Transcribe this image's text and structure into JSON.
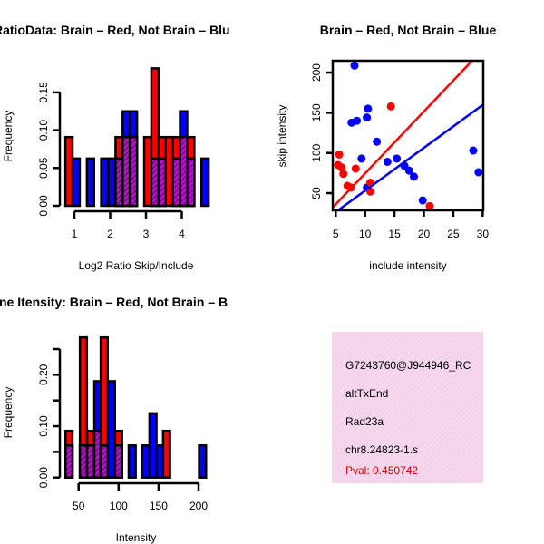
{
  "colors": {
    "red": "#ff0000",
    "blue": "#0000ff",
    "overlap": "#9900aa",
    "pval": "#cc0000",
    "box": "#f7d6f0"
  },
  "chart_data": [
    {
      "type": "bar",
      "title": "RatioData: Brain – Red, Not Brain – Blu",
      "xlabel": "Log2 Ratio Skip/Include",
      "ylabel": "Frequency",
      "xticks": [
        1,
        2,
        3,
        4
      ],
      "yticks": [
        "0.00",
        "0.05",
        "0.10",
        "0.15"
      ],
      "ylim": [
        0,
        0.15
      ],
      "bin_width": 0.2,
      "bins": [
        {
          "x": 0.85,
          "red": 0.0909,
          "blue": 0
        },
        {
          "x": 1.05,
          "red": 0,
          "blue": 0.0625
        },
        {
          "x": 1.45,
          "red": 0,
          "blue": 0.0625
        },
        {
          "x": 1.85,
          "red": 0,
          "blue": 0.0625
        },
        {
          "x": 2.05,
          "red": 0,
          "blue": 0.0625
        },
        {
          "x": 2.25,
          "red": 0.0909,
          "blue": 0.0625
        },
        {
          "x": 2.45,
          "red": 0.0909,
          "blue": 0.125
        },
        {
          "x": 2.65,
          "red": 0.0909,
          "blue": 0.125
        },
        {
          "x": 3.05,
          "red": 0.0909,
          "blue": 0
        },
        {
          "x": 3.25,
          "red": 0.1818,
          "blue": 0.0625
        },
        {
          "x": 3.45,
          "red": 0.0909,
          "blue": 0.0625
        },
        {
          "x": 3.65,
          "red": 0.0909,
          "blue": 0
        },
        {
          "x": 3.85,
          "red": 0.0909,
          "blue": 0.0625
        },
        {
          "x": 4.05,
          "red": 0.0909,
          "blue": 0.125
        },
        {
          "x": 4.25,
          "red": 0.0909,
          "blue": 0.0625
        },
        {
          "x": 4.65,
          "red": 0,
          "blue": 0.0625
        }
      ]
    },
    {
      "type": "scatter",
      "title": "Brain – Red, Not Brain – Blue",
      "xlabel": "include intensity",
      "ylabel": "skip intensity",
      "xticks": [
        5,
        10,
        15,
        20,
        25,
        30
      ],
      "yticks": [
        50,
        100,
        150,
        200
      ],
      "xlim": [
        4.5,
        30.1
      ],
      "ylim": [
        28.6,
        214.7
      ],
      "series": [
        {
          "name": "Not Brain",
          "color": "blue",
          "points": [
            [
              8.2,
              208.7
            ],
            [
              10.5,
              155
            ],
            [
              10.3,
              144
            ],
            [
              7.7,
              137.6
            ],
            [
              8.6,
              140
            ],
            [
              12.0,
              114
            ],
            [
              9.4,
              93
            ],
            [
              13.8,
              89
            ],
            [
              15.4,
              93
            ],
            [
              16.7,
              84
            ],
            [
              17.5,
              78
            ],
            [
              18.3,
              70.5
            ],
            [
              10.3,
              57
            ],
            [
              19.8,
              41
            ],
            [
              28.4,
              103
            ],
            [
              29.3,
              76
            ]
          ],
          "fit": {
            "intercept": -0.2,
            "slope": 5.33
          }
        },
        {
          "name": "Brain",
          "color": "red",
          "points": [
            [
              14.4,
              158
            ],
            [
              5.6,
              98
            ],
            [
              5.4,
              85
            ],
            [
              6.0,
              82
            ],
            [
              6.3,
              74
            ],
            [
              8.4,
              80.5
            ],
            [
              7.0,
              59
            ],
            [
              7.6,
              57
            ],
            [
              10.9,
              63
            ],
            [
              10.9,
              52
            ],
            [
              21.0,
              34
            ]
          ],
          "fit": {
            "intercept": -2.4,
            "slope": 7.7
          }
        }
      ]
    },
    {
      "type": "bar",
      "title": "ne Itensity: Brain – Red, Not Brain – B",
      "xlabel": "Intensity",
      "ylabel": "Frequency",
      "xticks": [
        50,
        100,
        150,
        200
      ],
      "yticks": [
        "0.00",
        "",
        "0.10",
        "",
        "0.20",
        ""
      ],
      "ylim": [
        0,
        0.25
      ],
      "bin_width": 8.7,
      "bins": [
        {
          "x": 38,
          "red": 0.0909,
          "blue": 0.0625
        },
        {
          "x": 56,
          "red": 0.2727,
          "blue": 0.0625
        },
        {
          "x": 65,
          "red": 0.0909,
          "blue": 0.0625
        },
        {
          "x": 74,
          "red": 0.0909,
          "blue": 0.1875
        },
        {
          "x": 82,
          "red": 0.2727,
          "blue": 0.0625
        },
        {
          "x": 91,
          "red": 0,
          "blue": 0.1875
        },
        {
          "x": 100,
          "red": 0.0909,
          "blue": 0.0625
        },
        {
          "x": 117,
          "red": 0,
          "blue": 0.0625
        },
        {
          "x": 134,
          "red": 0,
          "blue": 0.0625
        },
        {
          "x": 143,
          "red": 0,
          "blue": 0.125
        },
        {
          "x": 152,
          "red": 0,
          "blue": 0.0625
        },
        {
          "x": 160,
          "red": 0.0909,
          "blue": 0
        },
        {
          "x": 205,
          "red": 0,
          "blue": 0.0625
        }
      ]
    }
  ],
  "info_box": {
    "id": "G7243760@J944946_RC",
    "event": "altTxEnd",
    "gene": "Rad23a",
    "location": "chr8.24823-1.s",
    "pval": "Pval: 0.450742"
  }
}
